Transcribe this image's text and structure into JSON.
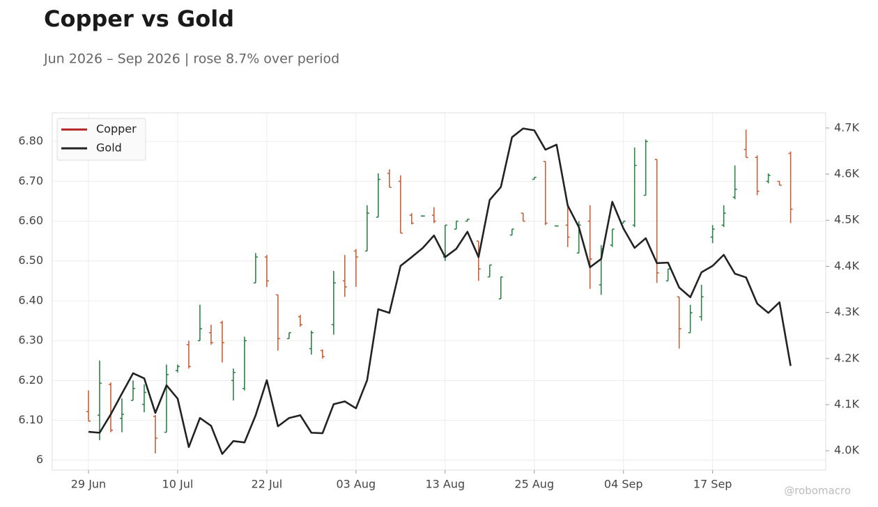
{
  "chart_data": {
    "type": "ohlc",
    "title": "Copper vs Gold",
    "subtitle": "Jun 2026 – Sep 2026 | rose 8.7% over period",
    "watermark": "@robomacro",
    "categories": [
      "29 Jun",
      null,
      null,
      null,
      null,
      null,
      null,
      null,
      "10 Jul",
      null,
      null,
      null,
      null,
      null,
      null,
      null,
      "22 Jul",
      null,
      null,
      null,
      null,
      null,
      null,
      null,
      "03 Aug",
      null,
      null,
      null,
      null,
      null,
      null,
      null,
      "13 Aug",
      null,
      null,
      null,
      null,
      null,
      null,
      null,
      "25 Aug",
      null,
      null,
      null,
      null,
      null,
      null,
      null,
      "04 Sep",
      null,
      null,
      null,
      null,
      null,
      null,
      null,
      "17 Sep",
      null,
      null,
      null,
      null,
      null,
      null,
      null
    ],
    "ylim": [
      5.975,
      6.872
    ],
    "yticks": [
      6,
      {
        "value": 6.1,
        "label": "6.10"
      },
      {
        "value": 6.2,
        "label": "6.20"
      },
      {
        "value": 6.3,
        "label": "6.30"
      },
      {
        "value": 6.4,
        "label": "6.40"
      },
      {
        "value": 6.5,
        "label": "6.50"
      },
      {
        "value": 6.6,
        "label": "6.60"
      },
      {
        "value": 6.7,
        "label": "6.70"
      },
      {
        "value": 6.8,
        "label": "6.80"
      }
    ],
    "y2lim": [
      3958,
      4733
    ],
    "y2ticks": [
      {
        "value": 4000,
        "label": "4.0K"
      },
      {
        "value": 4100,
        "label": "4.1K"
      },
      {
        "value": 4200,
        "label": "4.2K"
      },
      {
        "value": 4300,
        "label": "4.3K"
      },
      {
        "value": 4400,
        "label": "4.4K"
      },
      {
        "value": 4500,
        "label": "4.5K"
      },
      {
        "value": 4600,
        "label": "4.6K"
      },
      {
        "value": 4700,
        "label": "4.7K"
      }
    ],
    "grid": true,
    "legend": "upper left",
    "series": [
      {
        "name": "Copper",
        "color": "#b22222",
        "up_color": "#2e8049",
        "down_color": "#c4613a",
        "open": [
          6.122,
          6.113,
          6.19,
          6.105,
          6.15,
          6.14,
          6.11,
          6.07,
          6.225,
          6.29,
          6.3,
          6.32,
          6.345,
          6.2,
          6.18,
          6.445,
          6.51,
          6.415,
          6.305,
          6.36,
          6.28,
          6.275,
          6.34,
          6.45,
          6.525,
          6.525,
          6.61,
          6.72,
          6.7,
          6.615,
          6.613,
          6.615,
          6.51,
          6.58,
          6.6,
          6.55,
          6.46,
          6.405,
          6.565,
          6.62,
          6.705,
          6.75,
          6.588,
          6.59,
          6.52,
          6.6,
          6.44,
          6.54,
          6.595,
          6.59,
          6.665,
          6.755,
          6.45,
          6.41,
          6.32,
          6.36,
          6.56,
          6.59,
          6.66,
          6.78,
          6.76,
          6.7,
          6.7,
          6.77
        ],
        "high": [
          6.175,
          6.25,
          6.195,
          6.155,
          6.2,
          6.19,
          6.113,
          6.24,
          6.24,
          6.3,
          6.39,
          6.34,
          6.35,
          6.23,
          6.31,
          6.52,
          6.515,
          6.415,
          6.32,
          6.365,
          6.325,
          6.278,
          6.475,
          6.515,
          6.53,
          6.64,
          6.72,
          6.73,
          6.715,
          6.62,
          6.613,
          6.635,
          6.59,
          6.6,
          6.605,
          6.55,
          6.49,
          6.46,
          6.58,
          6.62,
          6.71,
          6.75,
          6.588,
          6.64,
          6.6,
          6.64,
          6.54,
          6.58,
          6.6,
          6.785,
          6.805,
          6.755,
          6.48,
          6.41,
          6.39,
          6.44,
          6.59,
          6.64,
          6.74,
          6.83,
          6.765,
          6.72,
          6.7,
          6.775
        ],
        "low": [
          6.098,
          6.05,
          6.07,
          6.07,
          6.15,
          6.12,
          6.017,
          6.07,
          6.22,
          6.23,
          6.3,
          6.29,
          6.245,
          6.15,
          6.175,
          6.445,
          6.435,
          6.275,
          6.305,
          6.335,
          6.265,
          6.255,
          6.315,
          6.41,
          6.435,
          6.525,
          6.61,
          6.685,
          6.57,
          6.592,
          6.613,
          6.595,
          6.5,
          6.58,
          6.6,
          6.45,
          6.46,
          6.405,
          6.565,
          6.6,
          6.705,
          6.59,
          6.588,
          6.535,
          6.52,
          6.43,
          6.415,
          6.535,
          6.595,
          6.585,
          6.665,
          6.445,
          6.45,
          6.28,
          6.32,
          6.35,
          6.545,
          6.585,
          6.655,
          6.76,
          6.665,
          6.695,
          6.69,
          6.595
        ],
        "close": [
          6.098,
          6.193,
          6.075,
          6.115,
          6.18,
          6.17,
          6.055,
          6.215,
          6.235,
          6.235,
          6.33,
          6.295,
          6.295,
          6.22,
          6.3,
          6.51,
          6.45,
          6.305,
          6.32,
          6.34,
          6.32,
          6.26,
          6.445,
          6.435,
          6.51,
          6.62,
          6.705,
          6.685,
          6.57,
          6.595,
          6.613,
          6.6,
          6.59,
          6.6,
          6.605,
          6.48,
          6.49,
          6.46,
          6.58,
          6.6,
          6.71,
          6.595,
          6.588,
          6.56,
          6.59,
          6.505,
          6.53,
          6.58,
          6.6,
          6.74,
          6.8,
          6.47,
          6.48,
          6.33,
          6.37,
          6.41,
          6.58,
          6.62,
          6.68,
          6.76,
          6.675,
          6.715,
          6.69,
          6.63
        ]
      },
      {
        "name": "Gold",
        "color": "#222222",
        "axis": "y2",
        "values": [
          4041,
          4039,
          4079,
          4124,
          4168,
          4157,
          4082,
          4142,
          4113,
          4008,
          4071,
          4054,
          3993,
          4021,
          4018,
          4077,
          4153,
          4053,
          4071,
          4077,
          4039,
          4038,
          4101,
          4107,
          4092,
          4153,
          4307,
          4299,
          4401,
          4420,
          4440,
          4467,
          4420,
          4438,
          4475,
          4420,
          4544,
          4572,
          4680,
          4699,
          4695,
          4653,
          4664,
          4532,
          4485,
          4398,
          4416,
          4540,
          4482,
          4440,
          4461,
          4407,
          4408,
          4354,
          4333,
          4387,
          4401,
          4425,
          4384,
          4376,
          4319,
          4299,
          4322,
          4184
        ]
      }
    ]
  }
}
